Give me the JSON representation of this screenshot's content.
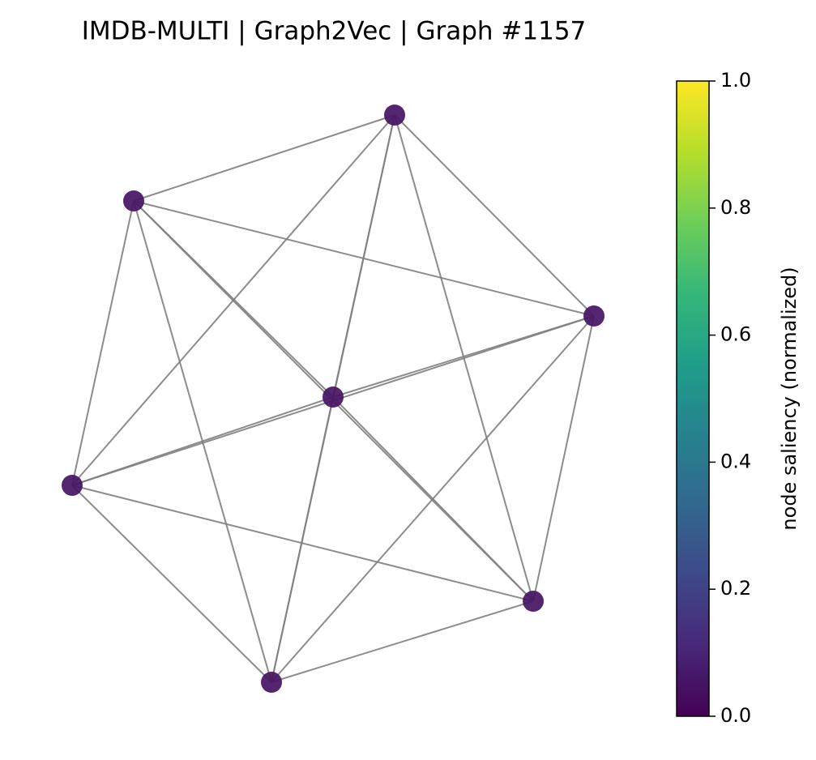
{
  "chart_data": {
    "type": "network",
    "title": "IMDB-MULTI | Graph2Vec | Graph #1157",
    "nodes": [
      {
        "saliency": 0.05
      },
      {
        "saliency": 0.05
      },
      {
        "saliency": 0.05
      },
      {
        "saliency": 0.05
      },
      {
        "saliency": 0.05
      },
      {
        "saliency": 0.05
      },
      {
        "saliency": 0.05
      }
    ],
    "colormap": "viridis",
    "colorbar_label": "node saliency (normalized)",
    "clim": [
      0,
      1
    ],
    "cticks": [
      {
        "value": 0,
        "label": "0.0"
      },
      {
        "value": 0.2,
        "label": "0.2"
      },
      {
        "value": 0.4,
        "label": "0.4"
      },
      {
        "value": 0.6,
        "label": "0.6"
      },
      {
        "value": 0.8,
        "label": "0.8"
      },
      {
        "value": 1,
        "label": "1.0"
      }
    ]
  }
}
